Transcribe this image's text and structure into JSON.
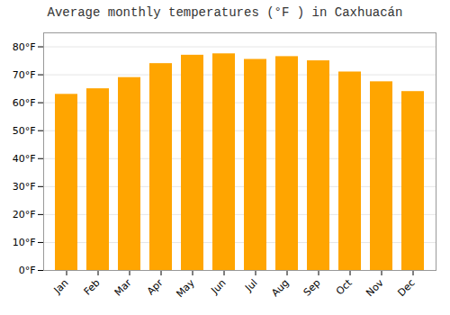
{
  "chart_data": {
    "type": "bar",
    "title": "Average monthly temperatures (°F ) in Caxhuacán",
    "categories": [
      "Jan",
      "Feb",
      "Mar",
      "Apr",
      "May",
      "Jun",
      "Jul",
      "Aug",
      "Sep",
      "Oct",
      "Nov",
      "Dec"
    ],
    "values": [
      63,
      65,
      69,
      74,
      77,
      77.5,
      75.5,
      76.5,
      75,
      71,
      67.5,
      64
    ],
    "color": "#FFA500",
    "ylim": [
      0,
      85
    ],
    "yticks": [
      {
        "value": 0,
        "label": "0°F"
      },
      {
        "value": 10,
        "label": "10°F"
      },
      {
        "value": 20,
        "label": "20°F"
      },
      {
        "value": 30,
        "label": "30°F"
      },
      {
        "value": 40,
        "label": "40°F"
      },
      {
        "value": 50,
        "label": "50°F"
      },
      {
        "value": 60,
        "label": "60°F"
      },
      {
        "value": 70,
        "label": "70°F"
      },
      {
        "value": 80,
        "label": "80°F"
      }
    ],
    "grid": true
  }
}
